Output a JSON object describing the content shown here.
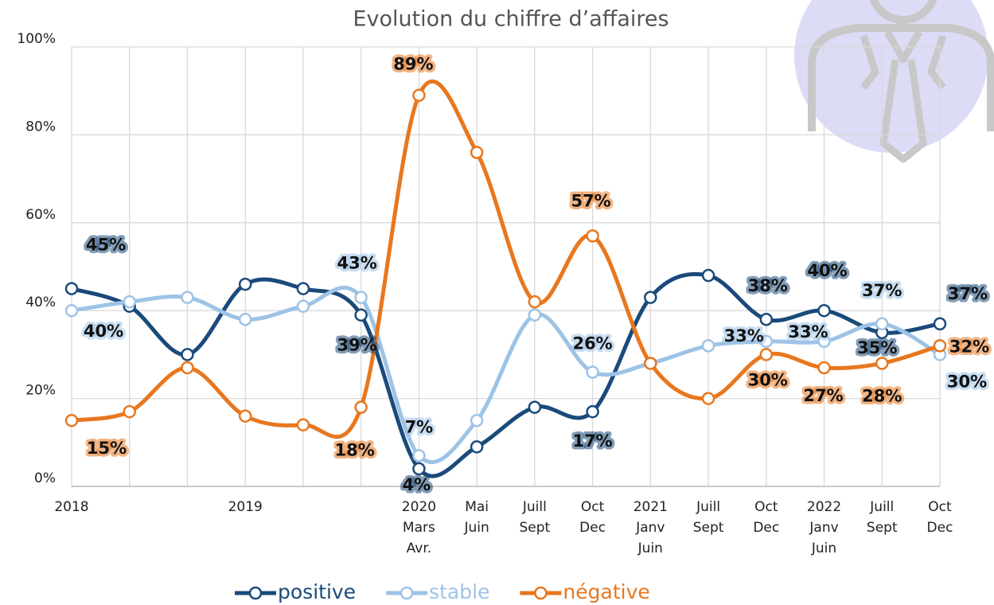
{
  "chart_data": {
    "type": "line",
    "title": "Evolution du chiffre d’affaires",
    "categories": [
      [
        "2018"
      ],
      null,
      null,
      [
        "2019"
      ],
      null,
      null,
      [
        "2020",
        "Mars",
        "Avr."
      ],
      [
        "Mai",
        "Juin"
      ],
      [
        "Juill",
        "Sept"
      ],
      [
        "Oct",
        "Dec"
      ],
      [
        "2021",
        "Janv",
        "Juin"
      ],
      [
        "Juill",
        "Sept"
      ],
      [
        "Oct",
        "Dec"
      ],
      [
        "2022",
        "Janv",
        "Juin"
      ],
      [
        "Juill",
        "Sept"
      ],
      [
        "Oct",
        "Dec"
      ]
    ],
    "series": [
      {
        "name": "positive",
        "color": "#1a4a7a",
        "values": [
          45,
          41,
          30,
          46,
          45,
          39,
          4,
          9,
          18,
          17,
          43,
          48,
          38,
          40,
          35,
          37
        ],
        "value_labels": [
          "45%",
          null,
          null,
          null,
          null,
          "39%",
          "4%",
          null,
          null,
          "17%",
          null,
          null,
          "38%",
          "40%",
          "35%",
          "37%"
        ]
      },
      {
        "name": "stable",
        "color": "#9dc3e6",
        "values": [
          40,
          42,
          43,
          38,
          41,
          43,
          7,
          15,
          39,
          26,
          28,
          32,
          33,
          33,
          37,
          30
        ],
        "value_labels": [
          "40%",
          null,
          null,
          null,
          null,
          "43%",
          "7%",
          null,
          null,
          "26%",
          null,
          null,
          "33%",
          "33%",
          "37%",
          "30%"
        ]
      },
      {
        "name": "négative",
        "color": "#e8771e",
        "values": [
          15,
          17,
          27,
          16,
          14,
          18,
          89,
          76,
          42,
          57,
          28,
          20,
          30,
          27,
          28,
          32
        ],
        "value_labels": [
          "15%",
          null,
          null,
          null,
          null,
          "18%",
          "89%",
          null,
          null,
          "57%",
          null,
          null,
          "30%",
          "27%",
          "28%",
          "32%"
        ]
      }
    ],
    "ylim": [
      0,
      100
    ],
    "yticks": [
      {
        "value": 0,
        "label": "0%"
      },
      {
        "value": 20,
        "label": "20%"
      },
      {
        "value": 40,
        "label": "40%"
      },
      {
        "value": 60,
        "label": "60%"
      },
      {
        "value": 80,
        "label": "80%"
      },
      {
        "value": 100,
        "label": "100%"
      }
    ],
    "grid": true,
    "smooth": true,
    "legend": "bottom"
  }
}
